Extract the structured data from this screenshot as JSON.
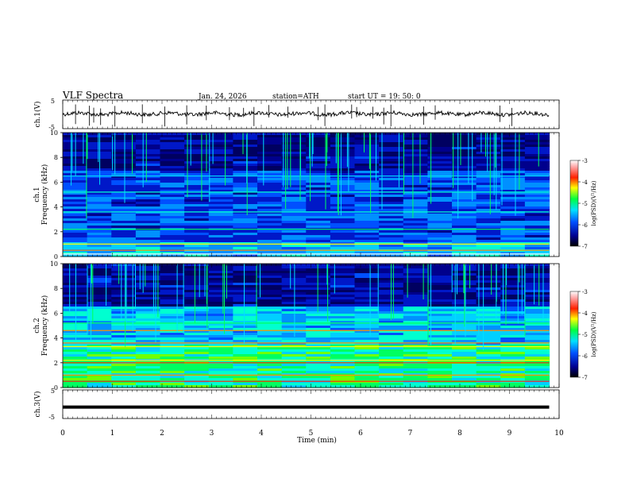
{
  "header": {
    "title": "VLF  Spectra",
    "date": "Jan. 24, 2026",
    "station": "station=ATH",
    "start_ut": "start  UT  =   19: 50: 0"
  },
  "chart_data": [
    {
      "type": "line",
      "name": "ch1-waveform",
      "ylabel": "ch.1(V)",
      "ylim": [
        -5,
        5
      ],
      "yticks": [
        "5",
        "-5"
      ],
      "xlim": [
        0,
        10
      ],
      "trace_level": 0.2,
      "trace_end_min": 9.8
    },
    {
      "type": "heatmap",
      "name": "ch1-spectrogram",
      "ylabel": "ch.1\nFrequency (kHz)",
      "ylim": [
        0,
        10
      ],
      "yticks": [
        "0",
        "2",
        "4",
        "6",
        "8",
        "10"
      ],
      "xlim": [
        0,
        10
      ],
      "data_end_min": 9.8,
      "colorbar": {
        "label": "log(PSD)(V²/Hz)",
        "range": [
          -7,
          -3
        ],
        "ticks": [
          "-3",
          "-4",
          "-5",
          "-6",
          "-7"
        ]
      }
    },
    {
      "type": "heatmap",
      "name": "ch2-spectrogram",
      "ylabel": "ch.2\nFrequency (kHz)",
      "ylim": [
        0,
        10
      ],
      "yticks": [
        "0",
        "2",
        "4",
        "6",
        "8",
        "10"
      ],
      "xlim": [
        0,
        10
      ],
      "data_end_min": 9.8,
      "colorbar": {
        "label": "log(PSD)(V²/Hz)",
        "range": [
          -7,
          -3
        ],
        "ticks": [
          "-3",
          "-4",
          "-5",
          "-6",
          "-7"
        ]
      }
    },
    {
      "type": "line",
      "name": "ch3-waveform",
      "ylabel": "ch.3(V)",
      "ylim": [
        -5,
        5
      ],
      "yticks": [
        "5",
        "-5"
      ],
      "xlim": [
        0,
        10
      ],
      "trace_level": -1.0,
      "trace_end_min": 9.8
    }
  ],
  "xaxis": {
    "label": "Time  (min)",
    "ticks": [
      "0",
      "1",
      "2",
      "3",
      "4",
      "5",
      "6",
      "7",
      "8",
      "9",
      "10"
    ]
  }
}
